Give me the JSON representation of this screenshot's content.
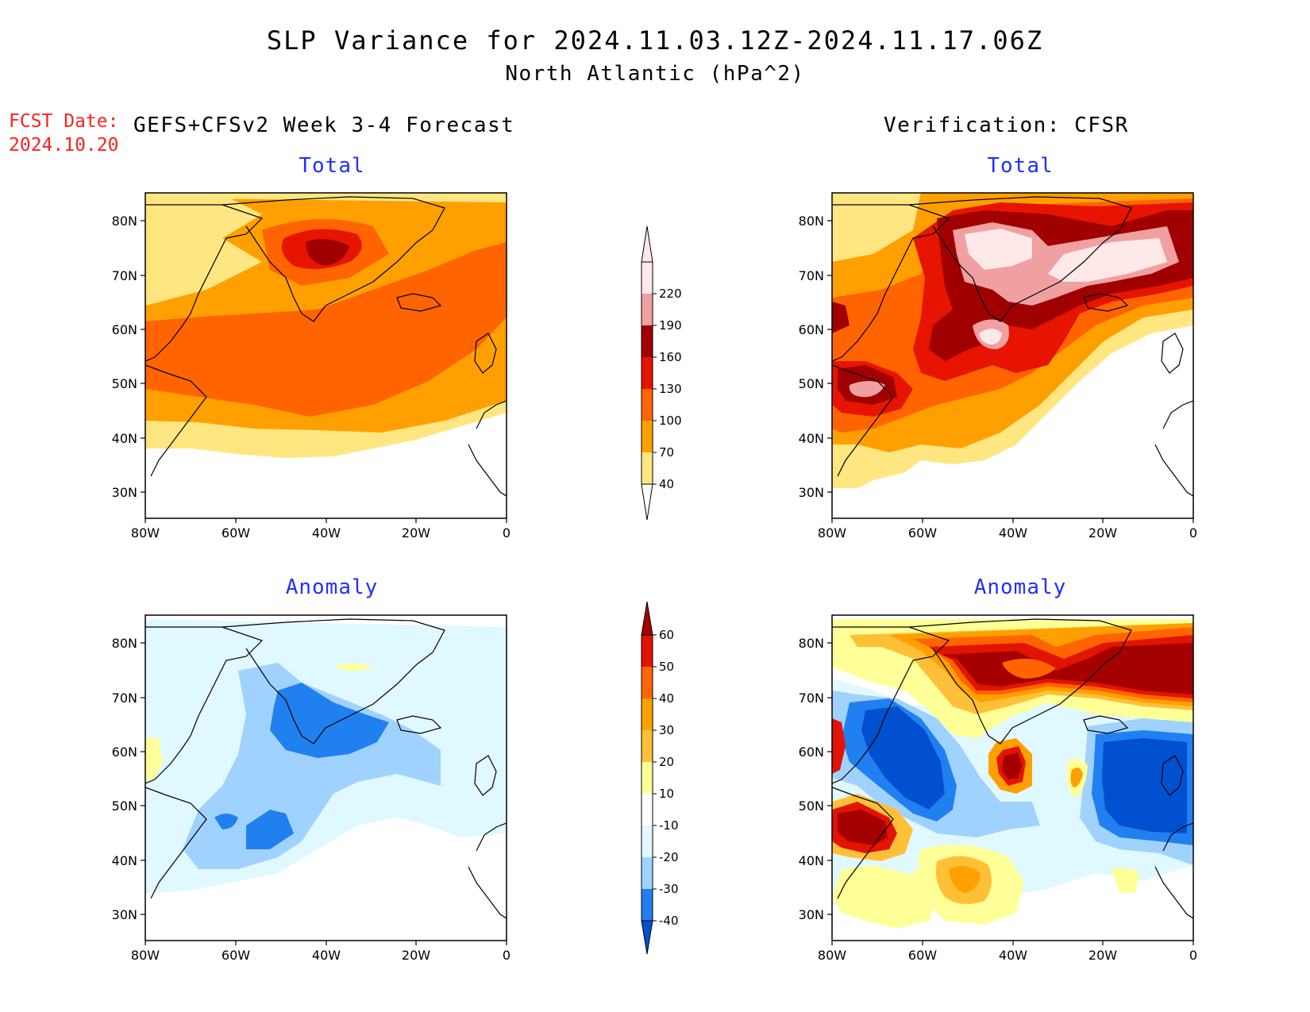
{
  "header": {
    "title": "SLP Variance for 2024.11.03.12Z-2024.11.17.06Z",
    "subtitle": "North Atlantic (hPa^2)",
    "fcst_label": "FCST Date:",
    "fcst_date": "2024.10.20",
    "left_column": "GEFS+CFSv2 Week 3-4 Forecast",
    "right_column": "Verification: CFSR"
  },
  "panels": {
    "fcst_total": "Total",
    "obs_total": "Total",
    "fcst_anomaly": "Anomaly",
    "obs_anomaly": "Anomaly"
  },
  "axes": {
    "lat_labels": [
      "80N",
      "70N",
      "60N",
      "50N",
      "40N",
      "30N"
    ],
    "lon_labels": [
      "80W",
      "60W",
      "40W",
      "20W",
      "0"
    ]
  },
  "colorbars": {
    "total": {
      "levels": [
        "40",
        "70",
        "100",
        "130",
        "160",
        "190",
        "220"
      ],
      "colors": [
        "#ffe680",
        "#ffa000",
        "#ff6400",
        "#e61400",
        "#a00000",
        "#f0a0a0",
        "#ffe8e8"
      ]
    },
    "anomaly": {
      "levels": [
        "-40",
        "-30",
        "-20",
        "-10",
        "10",
        "20",
        "30",
        "40",
        "50",
        "60"
      ],
      "colors": [
        "#0050d0",
        "#2080f0",
        "#a0d2ff",
        "#e0f8ff",
        "#ffffff",
        "#ffff98",
        "#ffc038",
        "#ffa000",
        "#ff6400",
        "#e11400",
        "#a50000"
      ]
    }
  },
  "colors": {
    "title_text": "#000000",
    "fcst_date": "#ff2020",
    "panel_label": "#2030ff"
  }
}
